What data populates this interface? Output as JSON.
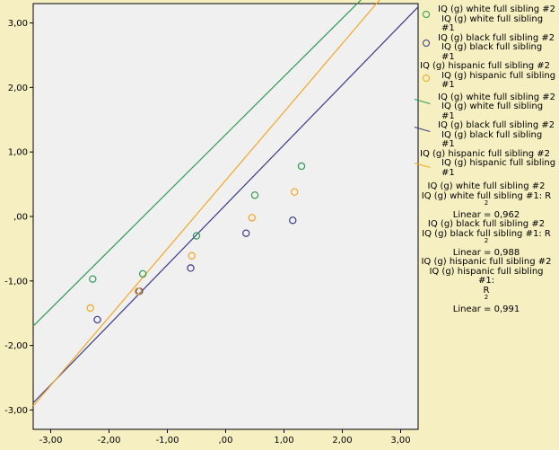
{
  "chart_data": {
    "type": "scatter",
    "xlim": [
      -3.3,
      3.3
    ],
    "ylim": [
      -3.3,
      3.3
    ],
    "x_ticks": [
      "-3,00",
      "-2,00",
      "-1,00",
      ",00",
      "1,00",
      "2,00",
      "3,00"
    ],
    "y_ticks": [
      "3,00",
      "2,00",
      "1,00",
      ",00",
      "-1,00",
      "-2,00",
      "-3,00"
    ],
    "x_tick_values": [
      -3,
      -2,
      -1,
      0,
      1,
      2,
      3
    ],
    "y_tick_values": [
      3,
      2,
      1,
      0,
      -1,
      -2,
      -3
    ],
    "series": [
      {
        "name": "IQ (g) white full sibling #2 / IQ (g) white full sibling #1",
        "color": "#2E9B52",
        "points": [
          [
            -2.28,
            -0.97
          ],
          [
            -1.42,
            -0.89
          ],
          [
            -0.5,
            -0.3
          ],
          [
            0.5,
            0.33
          ],
          [
            1.3,
            0.78
          ]
        ],
        "fit": {
          "slope": 0.9,
          "intercept": 1.27
        }
      },
      {
        "name": "IQ (g) black full sibling #2 / IQ (g) black full sibling #1",
        "color": "#3A3A88",
        "points": [
          [
            -2.2,
            -1.6
          ],
          [
            -1.48,
            -1.16
          ],
          [
            -0.6,
            -0.8
          ],
          [
            0.35,
            -0.26
          ],
          [
            1.15,
            -0.06
          ]
        ],
        "fit": {
          "slope": 0.93,
          "intercept": 0.18
        }
      },
      {
        "name": "IQ (g) hispanic full sibling #2 / IQ (g) hispanic full sibling #1",
        "color": "#F5A623",
        "points": [
          [
            -2.32,
            -1.42
          ],
          [
            -1.5,
            -1.16
          ],
          [
            -0.58,
            -0.61
          ],
          [
            0.45,
            -0.02
          ],
          [
            1.18,
            0.38
          ]
        ],
        "fit": {
          "slope": 1.06,
          "intercept": 0.56
        }
      }
    ]
  },
  "legend": {
    "items": [
      {
        "kind": "marker",
        "color": "#2E9B52",
        "line1": "IQ (g) white full sibling #2",
        "line2": "IQ (g) white full sibling #1"
      },
      {
        "kind": "marker",
        "color": "#3A3A88",
        "line1": "IQ (g) black full sibling #2",
        "line2": "IQ (g) black full sibling #1"
      },
      {
        "kind": "marker",
        "color": "#F5A623",
        "line1": "IQ (g) hispanic full sibling #2",
        "line2": "IQ (g) hispanic full sibling #1"
      },
      {
        "kind": "line",
        "color": "#2E9B52",
        "line1": "IQ (g) white full sibling #2",
        "line2": "IQ (g) white full sibling #1"
      },
      {
        "kind": "line",
        "color": "#3A3A88",
        "line1": "IQ (g) black full sibling #2",
        "line2": "IQ (g) black full sibling #1"
      },
      {
        "kind": "line",
        "color": "#F5A623",
        "line1": "IQ (g) hispanic full sibling #2",
        "line2": "IQ (g) hispanic full sibling #1"
      }
    ],
    "fit_labels": [
      {
        "l1": "IQ (g) white full sibling #2",
        "l2": "IQ (g) white full sibling #1: R",
        "sup": "2",
        "l3": "Linear = 0,962"
      },
      {
        "l1": "IQ (g) black full sibling #2",
        "l2": "IQ (g) black full sibling #1: R",
        "sup": "2",
        "l3": "Linear = 0,988"
      },
      {
        "l1": "IQ (g) hispanic full sibling #2",
        "l2": "IQ (g) hispanic full sibling #1:",
        "sup": "2",
        "l3a": "R",
        "l3": "Linear = 0,991"
      }
    ]
  }
}
